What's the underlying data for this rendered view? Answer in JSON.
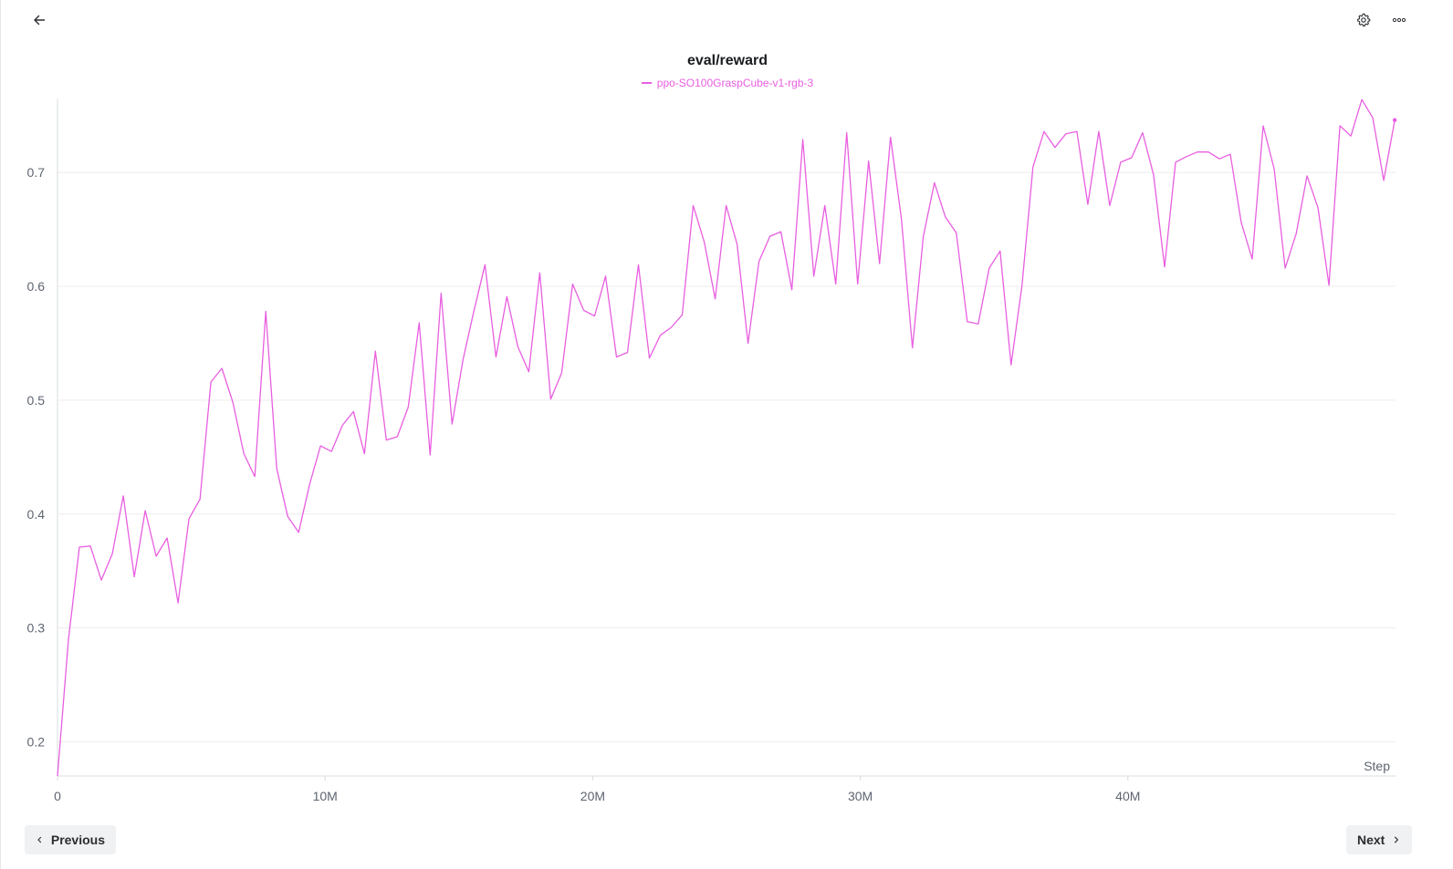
{
  "header": {
    "back_icon": "arrow-left-icon",
    "settings_icon": "gear-icon",
    "more_icon": "more-horizontal-icon"
  },
  "chart_data": {
    "type": "line",
    "title": "eval/reward",
    "xlabel": "Step",
    "ylabel": "",
    "xlim": [
      0,
      50000000
    ],
    "ylim": [
      0.17,
      0.765
    ],
    "x_ticks": [
      {
        "value": 0,
        "label": "0"
      },
      {
        "value": 10000000,
        "label": "10M"
      },
      {
        "value": 20000000,
        "label": "20M"
      },
      {
        "value": 30000000,
        "label": "30M"
      },
      {
        "value": 40000000,
        "label": "40M"
      }
    ],
    "y_ticks": [
      {
        "value": 0.2,
        "label": "0.2"
      },
      {
        "value": 0.3,
        "label": "0.3"
      },
      {
        "value": 0.4,
        "label": "0.4"
      },
      {
        "value": 0.5,
        "label": "0.5"
      },
      {
        "value": 0.6,
        "label": "0.6"
      },
      {
        "value": 0.7,
        "label": "0.7"
      }
    ],
    "grid": "horizontal",
    "legend_position": "top-center",
    "series": [
      {
        "name": "ppo-SO100GraspCube-v1-rgb-3",
        "color": "#e85ee0",
        "x": [
          0,
          409600,
          819200,
          1228800,
          1638400,
          2048000,
          2457600,
          2867200,
          3276800,
          3686400,
          4096000,
          4505600,
          4915200,
          5324800,
          5734400,
          6144000,
          6553600,
          6963200,
          7372800,
          7782400,
          8192000,
          8601600,
          9011200,
          9420800,
          9830400,
          10240000,
          10649600,
          11059200,
          11468800,
          11878400,
          12288000,
          12697600,
          13107200,
          13516800,
          13926400,
          14336000,
          14745600,
          15155200,
          15564800,
          15974400,
          16384000,
          16793600,
          17203200,
          17612800,
          18022400,
          18432000,
          18841600,
          19251200,
          19660800,
          20070400,
          20480000,
          20889600,
          21299200,
          21708800,
          22118400,
          22528000,
          22937600,
          23347200,
          23756800,
          24166400,
          24576000,
          24985600,
          25395200,
          25804800,
          26214400,
          26624000,
          27033600,
          27443200,
          27852800,
          28262400,
          28672000,
          29081600,
          29491200,
          29900800,
          30310400,
          30720000,
          31129600,
          31539200,
          31948800,
          32358400,
          32768000,
          33177600,
          33587200,
          33996800,
          34406400,
          34816000,
          35225600,
          35635200,
          36044800,
          36454400,
          36864000,
          37273600,
          37683200,
          38092800,
          38502400,
          38912000,
          39321600,
          39731200,
          40140800,
          40550400,
          40960000,
          41369600,
          41779200,
          42188800,
          42598400,
          43008000,
          43417600,
          43827200,
          44236800,
          44646400,
          45056000,
          45465600,
          45875200,
          46284800,
          46694400,
          47104000,
          47513600,
          47923200,
          48332800,
          48742400,
          49152000,
          49561600,
          49971200
        ],
        "values": [
          0.17,
          0.29,
          0.371,
          0.372,
          0.342,
          0.365,
          0.416,
          0.345,
          0.403,
          0.363,
          0.379,
          0.322,
          0.396,
          0.413,
          0.516,
          0.528,
          0.498,
          0.453,
          0.433,
          0.578,
          0.44,
          0.398,
          0.384,
          0.426,
          0.46,
          0.455,
          0.478,
          0.49,
          0.453,
          0.543,
          0.465,
          0.468,
          0.494,
          0.568,
          0.452,
          0.594,
          0.479,
          0.536,
          0.579,
          0.619,
          0.538,
          0.591,
          0.547,
          0.525,
          0.612,
          0.501,
          0.524,
          0.602,
          0.579,
          0.574,
          0.609,
          0.538,
          0.542,
          0.619,
          0.537,
          0.557,
          0.564,
          0.575,
          0.671,
          0.639,
          0.589,
          0.671,
          0.637,
          0.55,
          0.622,
          0.644,
          0.648,
          0.597,
          0.729,
          0.609,
          0.671,
          0.602,
          0.735,
          0.602,
          0.71,
          0.62,
          0.731,
          0.659,
          0.546,
          0.644,
          0.691,
          0.661,
          0.647,
          0.569,
          0.567,
          0.616,
          0.631,
          0.531,
          0.601,
          0.705,
          0.736,
          0.722,
          0.734,
          0.736,
          0.672,
          0.736,
          0.671,
          0.709,
          0.713,
          0.735,
          0.698,
          0.617,
          0.709,
          0.714,
          0.718,
          0.718,
          0.712,
          0.716,
          0.656,
          0.624,
          0.741,
          0.703,
          0.616,
          0.646,
          0.697,
          0.669,
          0.601,
          0.741,
          0.732,
          0.764,
          0.748,
          0.693,
          0.746
        ]
      }
    ]
  },
  "navigation": {
    "previous_label": "Previous",
    "next_label": "Next",
    "previous_icon": "chevron-left-icon",
    "next_icon": "chevron-right-icon"
  }
}
